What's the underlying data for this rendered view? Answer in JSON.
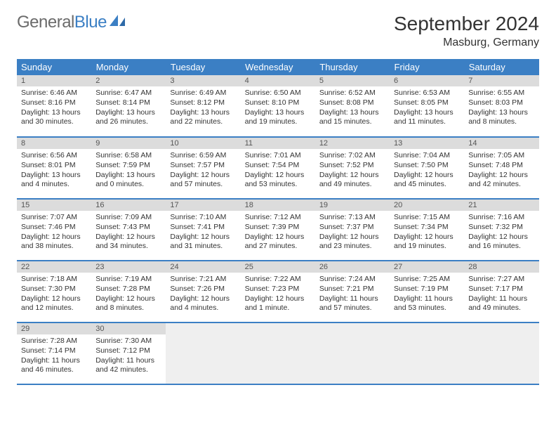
{
  "logo": {
    "text_gray": "General",
    "text_blue": "Blue"
  },
  "title": "September 2024",
  "location": "Masburg, Germany",
  "colors": {
    "header_bg": "#3b7fc4",
    "header_text": "#ffffff",
    "daynum_bg": "#dcdcdc",
    "empty_bg": "#efefef",
    "text": "#333333",
    "logo_gray": "#6b6b6b",
    "logo_blue": "#3b7fc4"
  },
  "weekdays": [
    "Sunday",
    "Monday",
    "Tuesday",
    "Wednesday",
    "Thursday",
    "Friday",
    "Saturday"
  ],
  "weeks": [
    [
      {
        "n": "1",
        "sr": "6:46 AM",
        "ss": "8:16 PM",
        "dl": "13 hours and 30 minutes."
      },
      {
        "n": "2",
        "sr": "6:47 AM",
        "ss": "8:14 PM",
        "dl": "13 hours and 26 minutes."
      },
      {
        "n": "3",
        "sr": "6:49 AM",
        "ss": "8:12 PM",
        "dl": "13 hours and 22 minutes."
      },
      {
        "n": "4",
        "sr": "6:50 AM",
        "ss": "8:10 PM",
        "dl": "13 hours and 19 minutes."
      },
      {
        "n": "5",
        "sr": "6:52 AM",
        "ss": "8:08 PM",
        "dl": "13 hours and 15 minutes."
      },
      {
        "n": "6",
        "sr": "6:53 AM",
        "ss": "8:05 PM",
        "dl": "13 hours and 11 minutes."
      },
      {
        "n": "7",
        "sr": "6:55 AM",
        "ss": "8:03 PM",
        "dl": "13 hours and 8 minutes."
      }
    ],
    [
      {
        "n": "8",
        "sr": "6:56 AM",
        "ss": "8:01 PM",
        "dl": "13 hours and 4 minutes."
      },
      {
        "n": "9",
        "sr": "6:58 AM",
        "ss": "7:59 PM",
        "dl": "13 hours and 0 minutes."
      },
      {
        "n": "10",
        "sr": "6:59 AM",
        "ss": "7:57 PM",
        "dl": "12 hours and 57 minutes."
      },
      {
        "n": "11",
        "sr": "7:01 AM",
        "ss": "7:54 PM",
        "dl": "12 hours and 53 minutes."
      },
      {
        "n": "12",
        "sr": "7:02 AM",
        "ss": "7:52 PM",
        "dl": "12 hours and 49 minutes."
      },
      {
        "n": "13",
        "sr": "7:04 AM",
        "ss": "7:50 PM",
        "dl": "12 hours and 45 minutes."
      },
      {
        "n": "14",
        "sr": "7:05 AM",
        "ss": "7:48 PM",
        "dl": "12 hours and 42 minutes."
      }
    ],
    [
      {
        "n": "15",
        "sr": "7:07 AM",
        "ss": "7:46 PM",
        "dl": "12 hours and 38 minutes."
      },
      {
        "n": "16",
        "sr": "7:09 AM",
        "ss": "7:43 PM",
        "dl": "12 hours and 34 minutes."
      },
      {
        "n": "17",
        "sr": "7:10 AM",
        "ss": "7:41 PM",
        "dl": "12 hours and 31 minutes."
      },
      {
        "n": "18",
        "sr": "7:12 AM",
        "ss": "7:39 PM",
        "dl": "12 hours and 27 minutes."
      },
      {
        "n": "19",
        "sr": "7:13 AM",
        "ss": "7:37 PM",
        "dl": "12 hours and 23 minutes."
      },
      {
        "n": "20",
        "sr": "7:15 AM",
        "ss": "7:34 PM",
        "dl": "12 hours and 19 minutes."
      },
      {
        "n": "21",
        "sr": "7:16 AM",
        "ss": "7:32 PM",
        "dl": "12 hours and 16 minutes."
      }
    ],
    [
      {
        "n": "22",
        "sr": "7:18 AM",
        "ss": "7:30 PM",
        "dl": "12 hours and 12 minutes."
      },
      {
        "n": "23",
        "sr": "7:19 AM",
        "ss": "7:28 PM",
        "dl": "12 hours and 8 minutes."
      },
      {
        "n": "24",
        "sr": "7:21 AM",
        "ss": "7:26 PM",
        "dl": "12 hours and 4 minutes."
      },
      {
        "n": "25",
        "sr": "7:22 AM",
        "ss": "7:23 PM",
        "dl": "12 hours and 1 minute."
      },
      {
        "n": "26",
        "sr": "7:24 AM",
        "ss": "7:21 PM",
        "dl": "11 hours and 57 minutes."
      },
      {
        "n": "27",
        "sr": "7:25 AM",
        "ss": "7:19 PM",
        "dl": "11 hours and 53 minutes."
      },
      {
        "n": "28",
        "sr": "7:27 AM",
        "ss": "7:17 PM",
        "dl": "11 hours and 49 minutes."
      }
    ],
    [
      {
        "n": "29",
        "sr": "7:28 AM",
        "ss": "7:14 PM",
        "dl": "11 hours and 46 minutes."
      },
      {
        "n": "30",
        "sr": "7:30 AM",
        "ss": "7:12 PM",
        "dl": "11 hours and 42 minutes."
      },
      null,
      null,
      null,
      null,
      null
    ]
  ],
  "labels": {
    "sunrise": "Sunrise: ",
    "sunset": "Sunset: ",
    "daylight": "Daylight: "
  }
}
